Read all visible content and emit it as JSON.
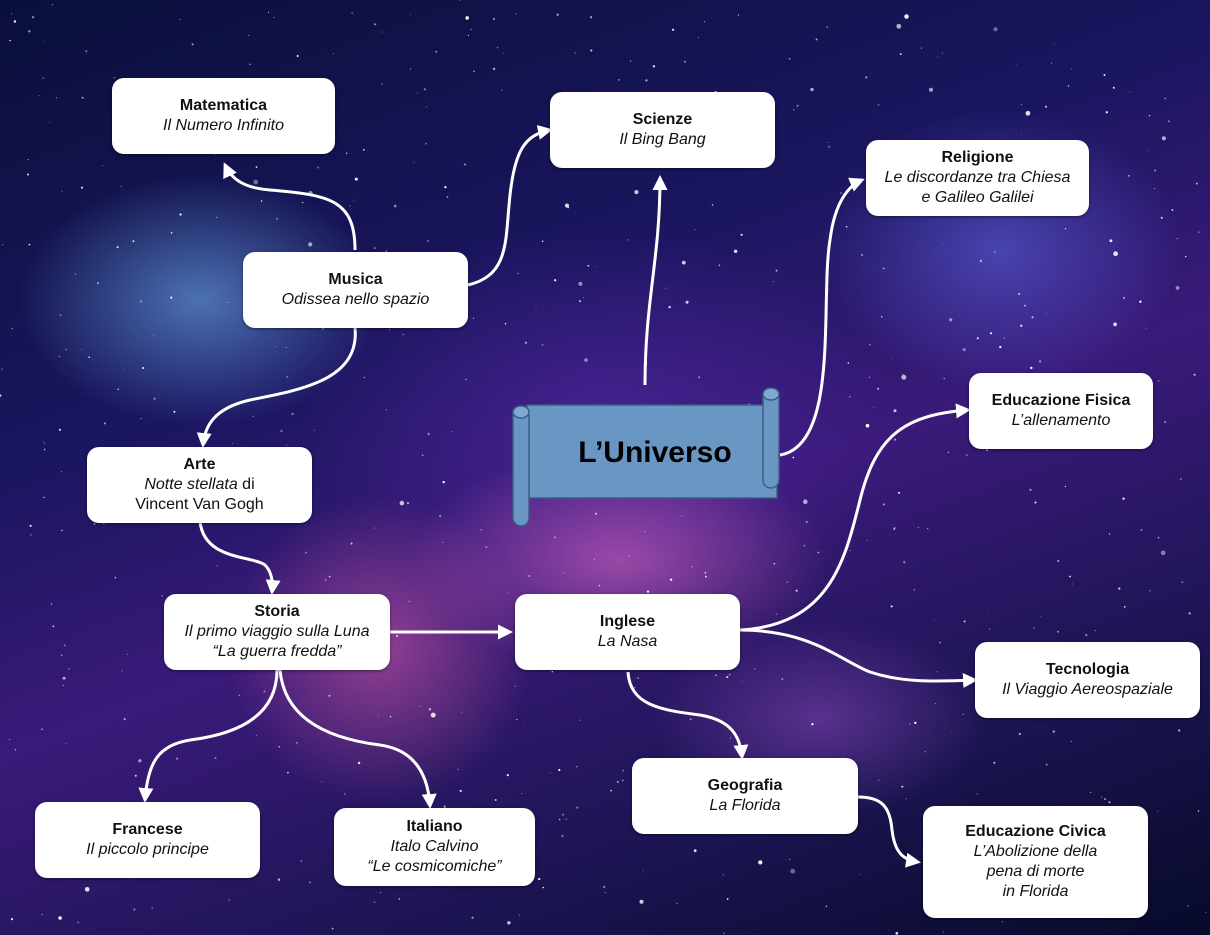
{
  "center": {
    "title": "L’Universo"
  },
  "nodes": {
    "matematica": {
      "title": "Matematica",
      "lines": [
        "Il Numero Infinito"
      ]
    },
    "scienze": {
      "title": "Scienze",
      "lines": [
        "Il Bing Bang"
      ]
    },
    "religione": {
      "title": "Religione",
      "lines": [
        "Le discordanze tra Chiesa",
        "e Galileo Galilei"
      ]
    },
    "musica": {
      "title": "Musica",
      "lines": [
        "Odissea nello spazio"
      ]
    },
    "arte": {
      "title": "Arte",
      "line1_italic": "Notte stellata",
      "line1_plain": " di",
      "line2": "Vincent Van Gogh"
    },
    "educazione_fisica": {
      "title": "Educazione Fisica",
      "lines": [
        "L’allenamento"
      ]
    },
    "storia": {
      "title": "Storia",
      "lines": [
        "Il primo viaggio sulla Luna",
        "“La guerra fredda”"
      ]
    },
    "inglese": {
      "title": "Inglese",
      "lines": [
        "La Nasa"
      ]
    },
    "tecnologia": {
      "title": "Tecnologia",
      "lines": [
        "Il Viaggio Aereospaziale"
      ]
    },
    "geografia": {
      "title": "Geografia",
      "lines": [
        "La Florida"
      ]
    },
    "francese": {
      "title": "Francese",
      "lines": [
        "Il piccolo principe"
      ]
    },
    "italiano": {
      "title": "Italiano",
      "lines": [
        "Italo Calvino",
        "“Le cosmicomiche”"
      ]
    },
    "educazione_civica": {
      "title": "Educazione Civica",
      "lines": [
        "L’Abolizione della",
        "pena di morte",
        "in Florida"
      ]
    }
  },
  "colors": {
    "scroll_fill": "#6a96c4",
    "scroll_stroke": "#3b5e86",
    "node_fill": "#ffffff",
    "arrow": "#ffffff"
  }
}
